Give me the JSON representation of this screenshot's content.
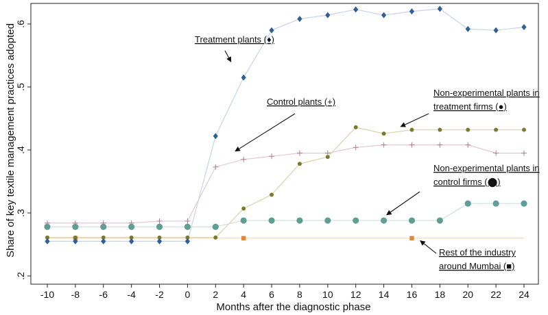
{
  "chart_data": {
    "type": "line",
    "xlabel": "Months after the diagnostic phase",
    "ylabel": "Share of key textile management practices adopted",
    "xlim": [
      -10,
      24
    ],
    "ylim": [
      0.2,
      0.63
    ],
    "xticks": [
      -10,
      -8,
      -6,
      -4,
      -2,
      0,
      2,
      4,
      6,
      8,
      10,
      12,
      14,
      16,
      18,
      20,
      22,
      24
    ],
    "xtick_labels": [
      "-10",
      "-8",
      "-6",
      "-4",
      "-2",
      "0",
      "2",
      "4",
      "6",
      "8",
      "10",
      "12",
      "14",
      "16",
      "18",
      "20",
      "22",
      "24"
    ],
    "yticks": [
      0.2,
      0.3,
      0.4,
      0.5,
      0.6
    ],
    "ytick_labels": [
      ".2",
      ".3",
      ".4",
      ".5",
      ".6"
    ],
    "grid": false,
    "legend": "none (inline annotations)",
    "series": [
      {
        "name": "Treatment plants",
        "marker": "diamond",
        "color": "#2f5f97",
        "line_color": "#c8d4e8",
        "x": [
          -10,
          -8,
          -6,
          -4,
          -2,
          0,
          2,
          4,
          6,
          8,
          10,
          12,
          14,
          16,
          18,
          20,
          22,
          24
        ],
        "y": [
          0.255,
          0.255,
          0.255,
          0.255,
          0.255,
          0.255,
          0.422,
          0.515,
          0.59,
          0.608,
          0.614,
          0.623,
          0.614,
          0.62,
          0.624,
          0.592,
          0.59,
          0.595
        ]
      },
      {
        "name": "Control plants",
        "marker": "plus",
        "color": "#b27a8a",
        "line_color": "#e6c8d2",
        "x": [
          -10,
          -8,
          -6,
          -4,
          -2,
          0,
          2,
          4,
          6,
          8,
          10,
          12,
          14,
          16,
          18,
          20,
          22,
          24
        ],
        "y": [
          0.284,
          0.284,
          0.284,
          0.284,
          0.287,
          0.287,
          0.373,
          0.385,
          0.39,
          0.395,
          0.395,
          0.404,
          0.408,
          0.408,
          0.408,
          0.408,
          0.395,
          0.395
        ]
      },
      {
        "name": "Non-experimental plants in treatment firms",
        "marker": "circle-small",
        "color": "#7a7a2e",
        "line_color": "#d8d3a8",
        "x": [
          -10,
          -8,
          -6,
          -4,
          -2,
          0,
          2,
          4,
          6,
          8,
          10,
          12,
          14,
          16,
          18,
          20,
          22,
          24
        ],
        "y": [
          0.261,
          0.261,
          0.261,
          0.261,
          0.261,
          0.261,
          0.261,
          0.307,
          0.329,
          0.378,
          0.389,
          0.436,
          0.426,
          0.432,
          0.432,
          0.432,
          0.432,
          0.432
        ]
      },
      {
        "name": "Non-experimental plants in control firms",
        "marker": "circle-large",
        "color": "#5e9f94",
        "line_color": "#cfe0dc",
        "x": [
          -10,
          -8,
          -6,
          -4,
          -2,
          0,
          2,
          4,
          6,
          8,
          10,
          12,
          14,
          16,
          18,
          20,
          22,
          24
        ],
        "y": [
          0.278,
          0.278,
          0.278,
          0.278,
          0.278,
          0.278,
          0.278,
          0.288,
          0.288,
          0.288,
          0.288,
          0.288,
          0.288,
          0.288,
          0.288,
          0.315,
          0.315,
          0.315
        ]
      },
      {
        "name": "Rest of the industry around Mumbai",
        "marker": "square",
        "color": "#e0853a",
        "line_color": "#f2d6b0",
        "x": [
          -8,
          4,
          16
        ],
        "y": [
          0.26,
          0.26,
          0.26
        ],
        "line_x": [
          -10,
          24
        ],
        "line_y": [
          0.26,
          0.26
        ]
      }
    ],
    "annotations": [
      {
        "series_index": 0,
        "lines": [
          "Treatment plants (♦)"
        ],
        "tx": 3.1,
        "ty": 0.54
      },
      {
        "series_index": 1,
        "lines": [
          "Control plants (+)"
        ],
        "tx": 3.4,
        "ty": 0.398
      },
      {
        "series_index": 2,
        "lines": [
          "Non-experimental plants in",
          "treatment firms (●)"
        ],
        "tx": 15.2,
        "ty": 0.437
      },
      {
        "series_index": 3,
        "lines": [
          "Non-experimental plants in",
          "control firms (⬤)"
        ],
        "tx": 14.2,
        "ty": 0.297
      },
      {
        "series_index": 4,
        "lines": [
          "Rest of the industry",
          "around Mumbai (■)"
        ],
        "tx": 16.6,
        "ty": 0.256
      }
    ]
  }
}
